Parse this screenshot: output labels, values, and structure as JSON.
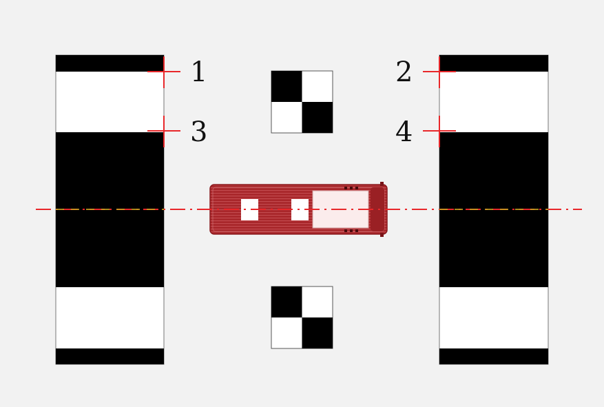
{
  "colors": {
    "background": "#f2f2f2",
    "target_dark": "#000000",
    "target_light": "#ffffff",
    "crosshair": "#e8272a",
    "centerline": "#e8272a",
    "centerline_dash": "#c8a020",
    "vehicle": "#a8262a"
  },
  "markers": {
    "m1": "1",
    "m2": "2",
    "m3": "3",
    "m4": "4"
  },
  "icons": {
    "vehicle": "vehicle-top-view-icon",
    "checker": "checkerboard-target-icon"
  }
}
